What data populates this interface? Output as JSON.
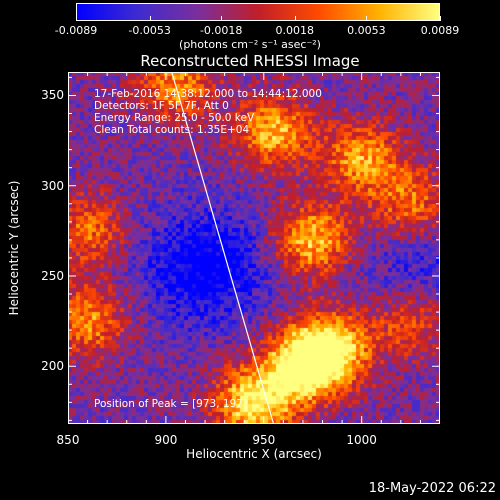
{
  "colorbar": {
    "ticks": [
      "-0.0089",
      "-0.0053",
      "-0.0018",
      "0.0018",
      "0.0053",
      "0.0089"
    ],
    "tick_values": [
      -0.0089,
      -0.0053,
      -0.0018,
      0.0018,
      0.0053,
      0.0089
    ],
    "range": [
      -0.0089,
      0.0089
    ],
    "unit": "(photons cm⁻² s⁻¹ asec⁻²)"
  },
  "annotations": {
    "time": "17-Feb-2016 14:38:12.000 to 14:44:12.000",
    "detectors": "Detectors: 1F 5F 7F, Att 0",
    "energy": "Energy Range: 25.0 - 50.0 keV",
    "clean": "Clean     Total counts: 1.35E+04",
    "peak": "Position of Peak = [973, 197]"
  },
  "footer": "18-May-2022 06:22",
  "chart_data": {
    "type": "heatmap",
    "title": "Reconstructed RHESSI Image",
    "xlabel": "Heliocentric X (arcsec)",
    "ylabel": "Heliocentric Y (arcsec)",
    "xlim": [
      850,
      1040
    ],
    "ylim": [
      168,
      363
    ],
    "xticks": [
      850,
      900,
      950,
      1000
    ],
    "yticks": [
      200,
      250,
      300,
      350
    ],
    "xtick_labels": [
      "850",
      "900",
      "950",
      "1000"
    ],
    "ytick_labels": [
      "200",
      "250",
      "300",
      "350"
    ],
    "colormap": [
      "#0000ff",
      "#3f2bd0",
      "#7a2f9c",
      "#c01f2a",
      "#ff4a00",
      "#ffb200",
      "#ffff80"
    ],
    "peak_position": [
      973,
      197
    ],
    "limb_line": [
      [
        903,
        363
      ],
      [
        955,
        168
      ]
    ],
    "bright_regions": [
      {
        "x": 945,
        "y": 180,
        "intensity": 0.9
      },
      {
        "x": 985,
        "y": 210,
        "intensity": 0.85
      },
      {
        "x": 970,
        "y": 200,
        "intensity": 0.95
      },
      {
        "x": 975,
        "y": 270,
        "intensity": 0.75
      },
      {
        "x": 955,
        "y": 330,
        "intensity": 0.7
      },
      {
        "x": 1000,
        "y": 315,
        "intensity": 0.65
      },
      {
        "x": 1025,
        "y": 290,
        "intensity": 0.55
      },
      {
        "x": 860,
        "y": 225,
        "intensity": 0.6
      },
      {
        "x": 860,
        "y": 275,
        "intensity": 0.5
      },
      {
        "x": 905,
        "y": 355,
        "intensity": 0.6
      },
      {
        "x": 1025,
        "y": 225,
        "intensity": 0.5
      }
    ],
    "dim_regions": [
      {
        "x": 920,
        "y": 255,
        "intensity": -0.4
      },
      {
        "x": 1030,
        "y": 250,
        "intensity": -0.2
      }
    ]
  }
}
